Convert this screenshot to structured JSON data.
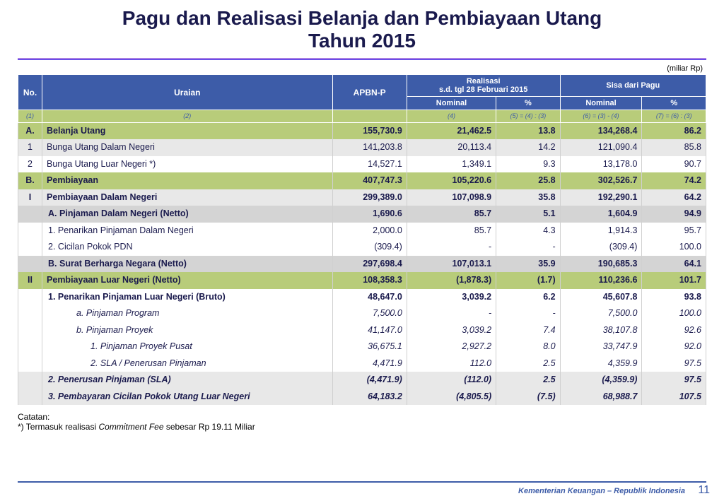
{
  "title_line1": "Pagu dan Realisasi Belanja dan Pembiayaan  Utang",
  "title_line2": "Tahun 2015",
  "unit_label": "(miliar Rp)",
  "headers": {
    "no": "No.",
    "uraian": "Uraian",
    "apbn": "APBN-P",
    "realisasi": "Realisasi",
    "realisasi_sub": "s.d. tgl 28 Februari 2015",
    "sisa": "Sisa dari Pagu",
    "nominal": "Nominal",
    "pct": "%"
  },
  "formulas": {
    "c1": "(1)",
    "c2": "(2)",
    "c3": "",
    "c4": "(4)",
    "c5": "(5) = (4) : (3)",
    "c6": "(6) = (3) - (4)",
    "c7": "(7) = (6) : (3)"
  },
  "rows": [
    {
      "cls": "section bold",
      "no": "A.",
      "u": "Belanja  Utang",
      "a": "155,730.9",
      "n1": "21,462.5",
      "p1": "13.8",
      "n2": "134,268.4",
      "p2": "86.2",
      "ind": ""
    },
    {
      "cls": "alt",
      "no": "1",
      "u": "Bunga Utang Dalam Negeri",
      "a": "141,203.8",
      "n1": "20,113.4",
      "p1": "14.2",
      "n2": "121,090.4",
      "p2": "85.8",
      "ind": ""
    },
    {
      "cls": "",
      "no": "2",
      "u": "Bunga Utang Luar Negeri *)",
      "a": "14,527.1",
      "n1": "1,349.1",
      "p1": "9.3",
      "n2": "13,178.0",
      "p2": "90.7",
      "ind": ""
    },
    {
      "cls": "section bold",
      "no": "B.",
      "u": "Pembiayaan",
      "a": "407,747.3",
      "n1": "105,220.6",
      "p1": "25.8",
      "n2": "302,526.7",
      "p2": "74.2",
      "ind": ""
    },
    {
      "cls": "alt bold",
      "no": "I",
      "u": "Pembiayaan Dalam Negeri",
      "a": "299,389.0",
      "n1": "107,098.9",
      "p1": "35.8",
      "n2": "192,290.1",
      "p2": "64.2",
      "ind": ""
    },
    {
      "cls": "sub-header bold",
      "no": "",
      "u": "A. Pinjaman Dalam Negeri (Netto)",
      "a": "1,690.6",
      "n1": "85.7",
      "p1": "5.1",
      "n2": "1,604.9",
      "p2": "94.9",
      "ind": "ind1"
    },
    {
      "cls": "",
      "no": "",
      "u": "1. Penarikan Pinjaman Dalam Negeri",
      "a": "2,000.0",
      "n1": "85.7",
      "p1": "4.3",
      "n2": "1,914.3",
      "p2": "95.7",
      "ind": "ind1"
    },
    {
      "cls": "",
      "no": "",
      "u": "2. Cicilan Pokok PDN",
      "a": "(309.4)",
      "n1": "-",
      "p1": "-",
      "n2": "(309.4)",
      "p2": "100.0",
      "ind": "ind1"
    },
    {
      "cls": "sub-header bold",
      "no": "",
      "u": "B. Surat Berharga Negara (Netto)",
      "a": "297,698.4",
      "n1": "107,013.1",
      "p1": "35.9",
      "n2": "190,685.3",
      "p2": "64.1",
      "ind": "ind1"
    },
    {
      "cls": "section bold",
      "no": "II",
      "u": "Pembiayaan Luar Negeri (Netto)",
      "a": "108,358.3",
      "n1": "(1,878.3)",
      "p1": "(1.7)",
      "n2": "110,236.6",
      "p2": "101.7",
      "ind": ""
    },
    {
      "cls": "bold",
      "no": "",
      "u": "1. Penarikan Pinjaman   Luar  Negeri (Bruto)",
      "a": "48,647.0",
      "n1": "3,039.2",
      "p1": "6.2",
      "n2": "45,607.8",
      "p2": "93.8",
      "ind": "ind1"
    },
    {
      "cls": "italic",
      "no": "",
      "u": "a.  Pinjaman Program",
      "a": "7,500.0",
      "n1": "-",
      "p1": "-",
      "n2": "7,500.0",
      "p2": "100.0",
      "ind": "ind3"
    },
    {
      "cls": "italic",
      "no": "",
      "u": "b.  Pinjaman Proyek",
      "a": "41,147.0",
      "n1": "3,039.2",
      "p1": "7.4",
      "n2": "38,107.8",
      "p2": "92.6",
      "ind": "ind3"
    },
    {
      "cls": "italic",
      "no": "",
      "u": "1. Pinjaman Proyek Pusat",
      "a": "36,675.1",
      "n1": "2,927.2",
      "p1": "8.0",
      "n2": "33,747.9",
      "p2": "92.0",
      "ind": "ind4"
    },
    {
      "cls": "italic",
      "no": "",
      "u": "2. SLA / Penerusan Pinjaman",
      "a": "4,471.9",
      "n1": "112.0",
      "p1": "2.5",
      "n2": "4,359.9",
      "p2": "97.5",
      "ind": "ind4"
    },
    {
      "cls": "alt italic bold",
      "no": "",
      "u": "2. Penerusan Pinjaman (SLA)",
      "a": "(4,471.9)",
      "n1": "(112.0)",
      "p1": "2.5",
      "n2": "(4,359.9)",
      "p2": "97.5",
      "ind": "ind1"
    },
    {
      "cls": "alt italic bold",
      "no": "",
      "u": "3. Pembayaran Cicilan Pokok Utang Luar Negeri",
      "a": "64,183.2",
      "n1": "(4,805.5)",
      "p1": "(7.5)",
      "n2": "68,988.7",
      "p2": "107.5",
      "ind": "ind1"
    }
  ],
  "note_label": "Catatan:",
  "note_text_a": "*)  Termasuk realisasi ",
  "note_text_b": "Commitment Fee",
  "note_text_c": " sebesar Rp 19.11 Miliar",
  "footer": "Kementerian Keuangan – Republik Indonesia",
  "page": "11"
}
